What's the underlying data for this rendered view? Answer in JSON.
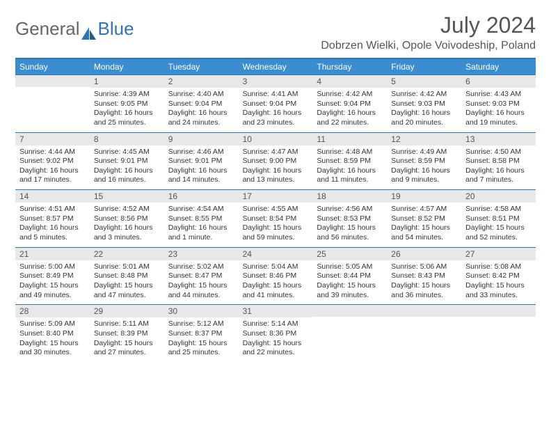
{
  "logo": {
    "text1": "General",
    "text2": "Blue"
  },
  "title": "July 2024",
  "location": "Dobrzen Wielki, Opole Voivodeship, Poland",
  "colors": {
    "header_bg": "#3a8dd0",
    "header_border": "#2e75b6",
    "daynum_bg": "#e8e8e8",
    "text": "#333333",
    "title_text": "#555555"
  },
  "dayNames": [
    "Sunday",
    "Monday",
    "Tuesday",
    "Wednesday",
    "Thursday",
    "Friday",
    "Saturday"
  ],
  "weeks": [
    [
      {
        "num": "",
        "sunrise": "",
        "sunset": "",
        "daylight": ""
      },
      {
        "num": "1",
        "sunrise": "Sunrise: 4:39 AM",
        "sunset": "Sunset: 9:05 PM",
        "daylight": "Daylight: 16 hours and 25 minutes."
      },
      {
        "num": "2",
        "sunrise": "Sunrise: 4:40 AM",
        "sunset": "Sunset: 9:04 PM",
        "daylight": "Daylight: 16 hours and 24 minutes."
      },
      {
        "num": "3",
        "sunrise": "Sunrise: 4:41 AM",
        "sunset": "Sunset: 9:04 PM",
        "daylight": "Daylight: 16 hours and 23 minutes."
      },
      {
        "num": "4",
        "sunrise": "Sunrise: 4:42 AM",
        "sunset": "Sunset: 9:04 PM",
        "daylight": "Daylight: 16 hours and 22 minutes."
      },
      {
        "num": "5",
        "sunrise": "Sunrise: 4:42 AM",
        "sunset": "Sunset: 9:03 PM",
        "daylight": "Daylight: 16 hours and 20 minutes."
      },
      {
        "num": "6",
        "sunrise": "Sunrise: 4:43 AM",
        "sunset": "Sunset: 9:03 PM",
        "daylight": "Daylight: 16 hours and 19 minutes."
      }
    ],
    [
      {
        "num": "7",
        "sunrise": "Sunrise: 4:44 AM",
        "sunset": "Sunset: 9:02 PM",
        "daylight": "Daylight: 16 hours and 17 minutes."
      },
      {
        "num": "8",
        "sunrise": "Sunrise: 4:45 AM",
        "sunset": "Sunset: 9:01 PM",
        "daylight": "Daylight: 16 hours and 16 minutes."
      },
      {
        "num": "9",
        "sunrise": "Sunrise: 4:46 AM",
        "sunset": "Sunset: 9:01 PM",
        "daylight": "Daylight: 16 hours and 14 minutes."
      },
      {
        "num": "10",
        "sunrise": "Sunrise: 4:47 AM",
        "sunset": "Sunset: 9:00 PM",
        "daylight": "Daylight: 16 hours and 13 minutes."
      },
      {
        "num": "11",
        "sunrise": "Sunrise: 4:48 AM",
        "sunset": "Sunset: 8:59 PM",
        "daylight": "Daylight: 16 hours and 11 minutes."
      },
      {
        "num": "12",
        "sunrise": "Sunrise: 4:49 AM",
        "sunset": "Sunset: 8:59 PM",
        "daylight": "Daylight: 16 hours and 9 minutes."
      },
      {
        "num": "13",
        "sunrise": "Sunrise: 4:50 AM",
        "sunset": "Sunset: 8:58 PM",
        "daylight": "Daylight: 16 hours and 7 minutes."
      }
    ],
    [
      {
        "num": "14",
        "sunrise": "Sunrise: 4:51 AM",
        "sunset": "Sunset: 8:57 PM",
        "daylight": "Daylight: 16 hours and 5 minutes."
      },
      {
        "num": "15",
        "sunrise": "Sunrise: 4:52 AM",
        "sunset": "Sunset: 8:56 PM",
        "daylight": "Daylight: 16 hours and 3 minutes."
      },
      {
        "num": "16",
        "sunrise": "Sunrise: 4:54 AM",
        "sunset": "Sunset: 8:55 PM",
        "daylight": "Daylight: 16 hours and 1 minute."
      },
      {
        "num": "17",
        "sunrise": "Sunrise: 4:55 AM",
        "sunset": "Sunset: 8:54 PM",
        "daylight": "Daylight: 15 hours and 59 minutes."
      },
      {
        "num": "18",
        "sunrise": "Sunrise: 4:56 AM",
        "sunset": "Sunset: 8:53 PM",
        "daylight": "Daylight: 15 hours and 56 minutes."
      },
      {
        "num": "19",
        "sunrise": "Sunrise: 4:57 AM",
        "sunset": "Sunset: 8:52 PM",
        "daylight": "Daylight: 15 hours and 54 minutes."
      },
      {
        "num": "20",
        "sunrise": "Sunrise: 4:58 AM",
        "sunset": "Sunset: 8:51 PM",
        "daylight": "Daylight: 15 hours and 52 minutes."
      }
    ],
    [
      {
        "num": "21",
        "sunrise": "Sunrise: 5:00 AM",
        "sunset": "Sunset: 8:49 PM",
        "daylight": "Daylight: 15 hours and 49 minutes."
      },
      {
        "num": "22",
        "sunrise": "Sunrise: 5:01 AM",
        "sunset": "Sunset: 8:48 PM",
        "daylight": "Daylight: 15 hours and 47 minutes."
      },
      {
        "num": "23",
        "sunrise": "Sunrise: 5:02 AM",
        "sunset": "Sunset: 8:47 PM",
        "daylight": "Daylight: 15 hours and 44 minutes."
      },
      {
        "num": "24",
        "sunrise": "Sunrise: 5:04 AM",
        "sunset": "Sunset: 8:46 PM",
        "daylight": "Daylight: 15 hours and 41 minutes."
      },
      {
        "num": "25",
        "sunrise": "Sunrise: 5:05 AM",
        "sunset": "Sunset: 8:44 PM",
        "daylight": "Daylight: 15 hours and 39 minutes."
      },
      {
        "num": "26",
        "sunrise": "Sunrise: 5:06 AM",
        "sunset": "Sunset: 8:43 PM",
        "daylight": "Daylight: 15 hours and 36 minutes."
      },
      {
        "num": "27",
        "sunrise": "Sunrise: 5:08 AM",
        "sunset": "Sunset: 8:42 PM",
        "daylight": "Daylight: 15 hours and 33 minutes."
      }
    ],
    [
      {
        "num": "28",
        "sunrise": "Sunrise: 5:09 AM",
        "sunset": "Sunset: 8:40 PM",
        "daylight": "Daylight: 15 hours and 30 minutes."
      },
      {
        "num": "29",
        "sunrise": "Sunrise: 5:11 AM",
        "sunset": "Sunset: 8:39 PM",
        "daylight": "Daylight: 15 hours and 27 minutes."
      },
      {
        "num": "30",
        "sunrise": "Sunrise: 5:12 AM",
        "sunset": "Sunset: 8:37 PM",
        "daylight": "Daylight: 15 hours and 25 minutes."
      },
      {
        "num": "31",
        "sunrise": "Sunrise: 5:14 AM",
        "sunset": "Sunset: 8:36 PM",
        "daylight": "Daylight: 15 hours and 22 minutes."
      },
      {
        "num": "",
        "sunrise": "",
        "sunset": "",
        "daylight": ""
      },
      {
        "num": "",
        "sunrise": "",
        "sunset": "",
        "daylight": ""
      },
      {
        "num": "",
        "sunrise": "",
        "sunset": "",
        "daylight": ""
      }
    ]
  ]
}
